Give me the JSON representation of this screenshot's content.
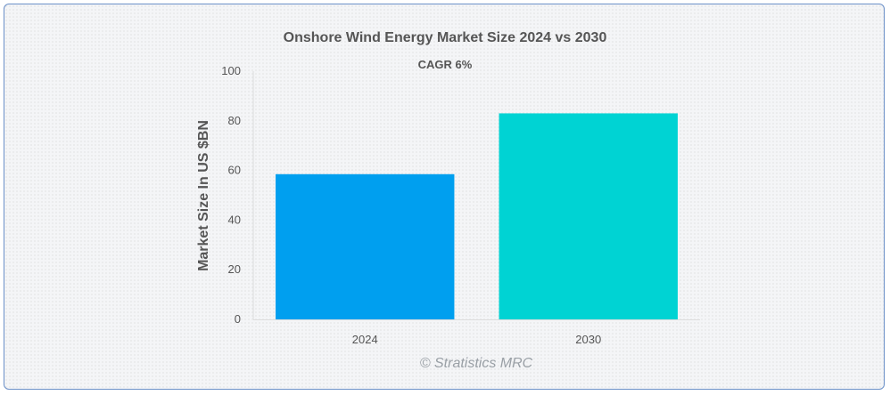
{
  "chart_data": {
    "type": "bar",
    "title": "Onshore Wind Energy Market Size 2024 vs 2030",
    "subtitle": "CAGR 6%",
    "xlabel": "",
    "ylabel": "Market Size In US $BN",
    "categories": [
      "2024",
      "2030"
    ],
    "values": [
      58.5,
      83
    ],
    "ylim": [
      0,
      100
    ],
    "yticks": [
      0,
      20,
      40,
      60,
      80,
      100
    ],
    "bar_colors": [
      "#009fef",
      "#00d3d3"
    ],
    "grid": false,
    "legend": "none"
  },
  "credit": "© Stratistics MRC"
}
